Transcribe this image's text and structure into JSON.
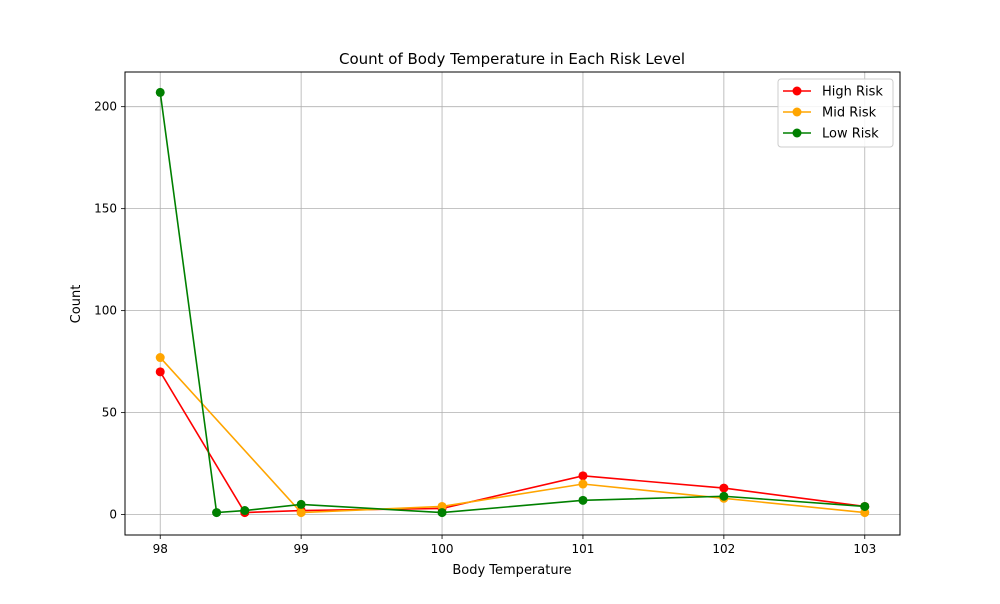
{
  "chart_data": {
    "type": "line",
    "title": "Count of Body Temperature in Each Risk Level",
    "xlabel": "Body Temperature",
    "ylabel": "Count",
    "xlim": [
      97.75,
      103.25
    ],
    "ylim": [
      -10,
      217
    ],
    "xticks": [
      98,
      99,
      100,
      101,
      102,
      103
    ],
    "yticks": [
      0,
      50,
      100,
      150,
      200
    ],
    "grid": true,
    "legend_position": "top-right",
    "series": [
      {
        "name": "High Risk",
        "color": "#ff0000",
        "x": [
          98,
          98.6,
          99,
          100,
          101,
          102,
          103
        ],
        "y": [
          70,
          1,
          2,
          3,
          19,
          13,
          4
        ]
      },
      {
        "name": "Mid Risk",
        "color": "#ffa500",
        "x": [
          98,
          99,
          100,
          101,
          102,
          103
        ],
        "y": [
          77,
          1,
          4,
          15,
          8,
          1
        ]
      },
      {
        "name": "Low Risk",
        "color": "#008000",
        "x": [
          98,
          98.4,
          98.6,
          99,
          100,
          101,
          102,
          103
        ],
        "y": [
          207,
          1,
          2,
          5,
          1,
          7,
          9,
          4
        ]
      }
    ]
  }
}
